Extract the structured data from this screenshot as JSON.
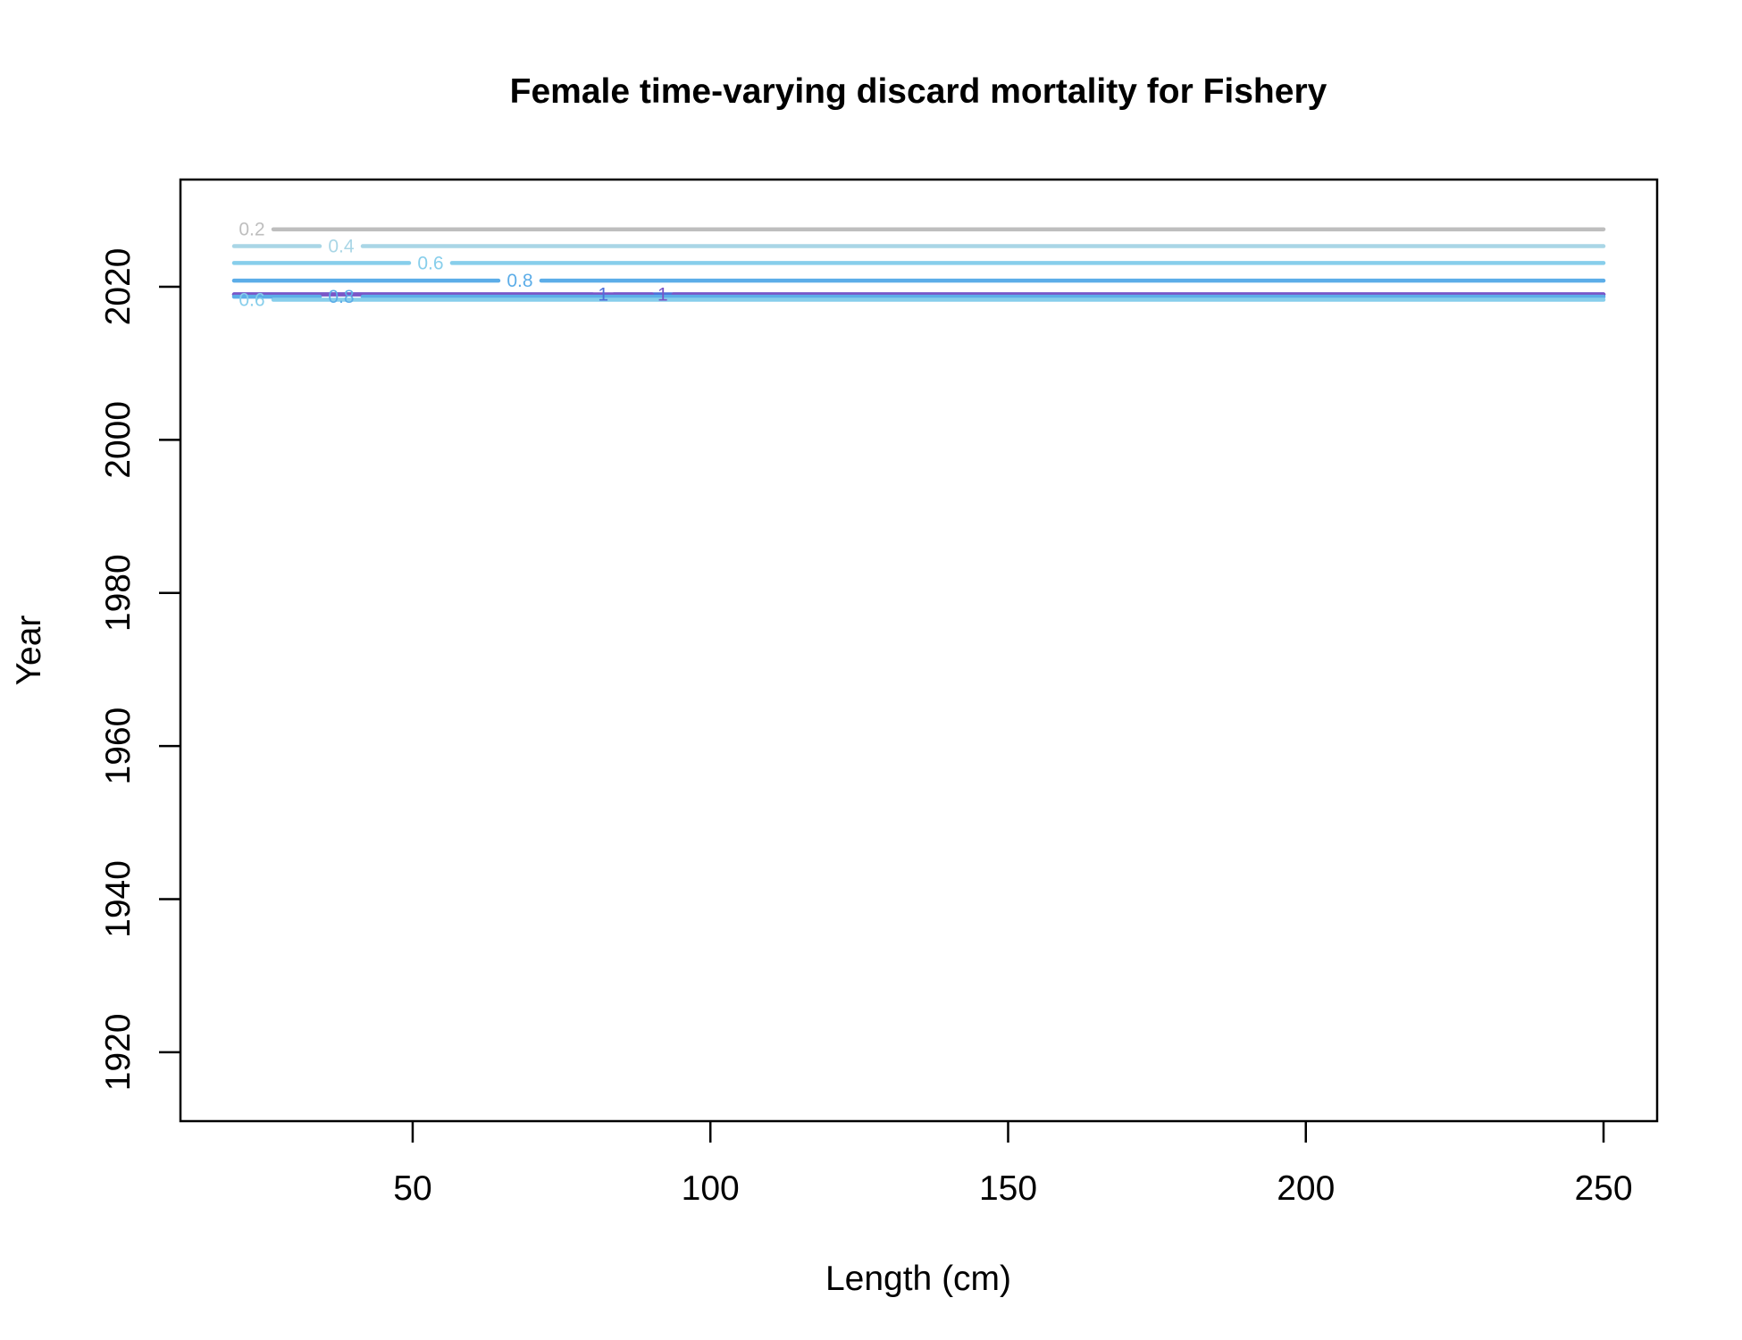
{
  "chart_data": {
    "type": "contour",
    "title": "Female time-varying discard mortality for Fishery",
    "xlabel": "Length (cm)",
    "ylabel": "Year",
    "xlim": [
      11,
      259
    ],
    "ylim": [
      1911,
      2034
    ],
    "xticks": [
      50,
      100,
      150,
      200,
      250
    ],
    "yticks": [
      1920,
      1940,
      1960,
      1980,
      2000,
      2020
    ],
    "grid": false,
    "legend": "none",
    "contours": [
      {
        "level": 0.2,
        "label": "0.2",
        "y": 2027.5,
        "x_from": 20,
        "x_to": 250,
        "label_x": 23,
        "color": "#bebebe"
      },
      {
        "level": 0.4,
        "label": "0.4",
        "y": 2025.3,
        "x_from": 20,
        "x_to": 250,
        "label_x": 38,
        "color": "#a9d6e6"
      },
      {
        "level": 0.6,
        "label": "0.6",
        "y": 2023.1,
        "x_from": 20,
        "x_to": 250,
        "label_x": 53,
        "color": "#87ceeb"
      },
      {
        "level": 0.8,
        "label": "0.8",
        "y": 2020.8,
        "x_from": 20,
        "x_to": 250,
        "label_x": 68,
        "color": "#5cade8"
      },
      {
        "level": 1.0,
        "label": "1",
        "y": 2019.0,
        "x_from": 20,
        "x_to": 250,
        "label_x": 82,
        "color": "#4f6fd9"
      },
      {
        "level": 1.0,
        "label": "1",
        "y": 2019.0,
        "x_from": 20,
        "x_to": 250,
        "label_x": 92,
        "color": "#7a55c7"
      },
      {
        "level": 0.8,
        "label": "0.8",
        "y": 2018.7,
        "x_from": 20,
        "x_to": 250,
        "label_x": 38,
        "color": "#5cade8"
      },
      {
        "level": 0.6,
        "label": "0.6",
        "y": 2018.3,
        "x_from": 20,
        "x_to": 250,
        "label_x": 23,
        "color": "#87ceeb"
      }
    ]
  }
}
